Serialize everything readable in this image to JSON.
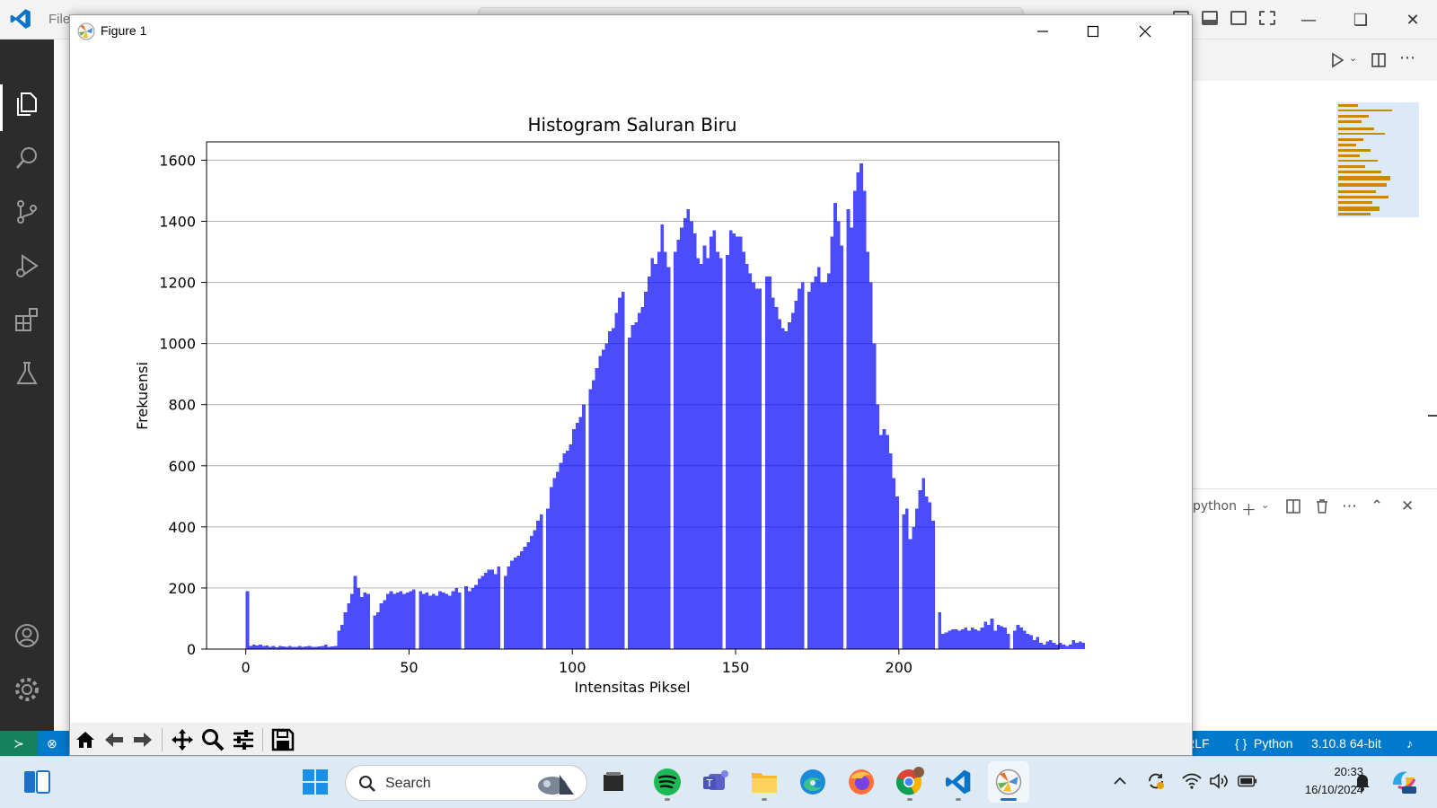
{
  "vscode": {
    "menu_file": "File",
    "terminal_name": "python",
    "status": {
      "remote_icon": "remote-icon",
      "eol": "CRLF",
      "language": "Python",
      "interpreter": "3.10.8 64-bit"
    }
  },
  "figure_window": {
    "title": "Figure 1",
    "toolbar": [
      "home-icon",
      "back-icon",
      "forward-icon",
      "pan-icon",
      "zoom-icon",
      "configure-subplots-icon",
      "save-icon"
    ]
  },
  "chart_data": {
    "type": "bar",
    "title": "Histogram Saluran Biru",
    "xlabel": "Intensitas Piksel",
    "ylabel": "Frekuensi",
    "xlim": [
      -12,
      249
    ],
    "ylim": [
      0,
      1660
    ],
    "xticks": [
      0,
      50,
      100,
      150,
      200
    ],
    "yticks": [
      0,
      200,
      400,
      600,
      800,
      1000,
      1200,
      1400,
      1600
    ],
    "grid": "y",
    "bar_color": "#0000ff",
    "bar_alpha": 0.7,
    "x_start": 0,
    "bin_width": 1,
    "values": [
      190,
      10,
      15,
      12,
      14,
      10,
      12,
      8,
      10,
      6,
      10,
      9,
      8,
      10,
      8,
      7,
      10,
      8,
      9,
      10,
      8,
      7,
      9,
      11,
      15,
      8,
      9,
      10,
      60,
      80,
      120,
      150,
      180,
      240,
      200,
      170,
      185,
      180,
      0,
      110,
      120,
      150,
      160,
      180,
      190,
      180,
      185,
      190,
      180,
      185,
      190,
      195,
      0,
      190,
      180,
      185,
      175,
      180,
      175,
      190,
      185,
      180,
      175,
      190,
      200,
      185,
      0,
      205,
      190,
      200,
      210,
      230,
      240,
      250,
      260,
      260,
      245,
      270,
      0,
      240,
      270,
      290,
      300,
      305,
      320,
      335,
      350,
      370,
      390,
      420,
      440,
      0,
      460,
      530,
      560,
      580,
      610,
      640,
      650,
      670,
      720,
      740,
      760,
      800,
      0,
      850,
      880,
      920,
      960,
      980,
      1000,
      1040,
      1050,
      1100,
      1150,
      1170,
      0,
      1020,
      1060,
      1070,
      1100,
      1120,
      1170,
      1220,
      1280,
      1260,
      1300,
      1390,
      1300,
      1250,
      0,
      1300,
      1340,
      1380,
      1410,
      1440,
      1400,
      1360,
      1280,
      1260,
      1320,
      1280,
      1350,
      1370,
      1300,
      1280,
      0,
      1290,
      1370,
      1360,
      1350,
      1350,
      1300,
      1260,
      1230,
      1200,
      1180,
      1180,
      0,
      1220,
      1220,
      1150,
      1120,
      1080,
      1050,
      1040,
      1070,
      1100,
      1140,
      1180,
      1200,
      0,
      1170,
      1200,
      1220,
      1250,
      1200,
      1200,
      1230,
      1350,
      1460,
      1400,
      1320,
      0,
      1440,
      1380,
      1500,
      1560,
      1590,
      1500,
      1300,
      1200,
      1000,
      800,
      700,
      720,
      700,
      640,
      560,
      500,
      0,
      440,
      460,
      360,
      400,
      460,
      520,
      560,
      500,
      480,
      420,
      0,
      120,
      50,
      55,
      60,
      65,
      65,
      60,
      65,
      70,
      60,
      70,
      65,
      60,
      70,
      90,
      80,
      100,
      60,
      80,
      75,
      70,
      50,
      0,
      60,
      80,
      70,
      60,
      50,
      45,
      30,
      40,
      20,
      15,
      25,
      30,
      20,
      15,
      20,
      15,
      10,
      15,
      30,
      20,
      25,
      20
    ]
  },
  "taskbar": {
    "search_label": "Search",
    "apps": [
      "start-icon",
      "photos-icon",
      "file-icon",
      "spotify-icon",
      "teams-icon",
      "file-explorer-icon",
      "edge-icon",
      "firefox-icon",
      "chrome-icon",
      "vscode-icon",
      "matplotlib-icon"
    ],
    "clock_time": "20:33",
    "clock_date": "16/10/2024"
  }
}
